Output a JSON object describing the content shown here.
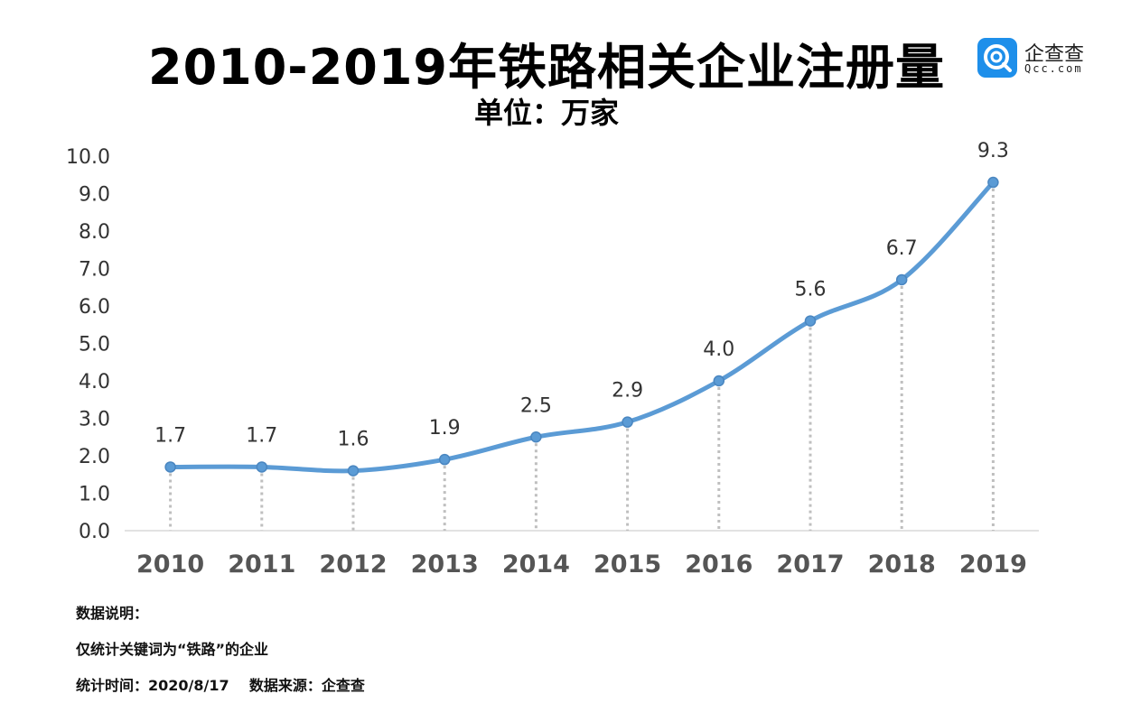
{
  "header": {
    "title": "2010-2019年铁路相关企业注册量",
    "subtitle": "单位：万家"
  },
  "logo": {
    "name": "企查查",
    "domain": "Qcc.com",
    "brand_color": "#1e8fea"
  },
  "chart_data": {
    "type": "line",
    "title": "2010-2019年铁路相关企业注册量",
    "subtitle": "单位：万家",
    "categories": [
      "2010",
      "2011",
      "2012",
      "2013",
      "2014",
      "2015",
      "2016",
      "2017",
      "2018",
      "2019"
    ],
    "series": [
      {
        "name": "铁路相关企业注册量",
        "values": [
          1.7,
          1.7,
          1.6,
          1.9,
          2.5,
          2.9,
          4.0,
          5.6,
          6.7,
          9.3
        ],
        "labels": [
          "1.7",
          "1.7",
          "1.6",
          "1.9",
          "2.5",
          "2.9",
          "4.0",
          "5.6",
          "6.7",
          "9.3"
        ],
        "color": "#5b9bd5"
      }
    ],
    "yticks": [
      "0.0",
      "1.0",
      "2.0",
      "3.0",
      "4.0",
      "5.0",
      "6.0",
      "7.0",
      "8.0",
      "9.0",
      "10.0"
    ],
    "ylim": [
      0,
      10
    ],
    "xlabel": "",
    "ylabel": "",
    "smooth": true,
    "drop_lines": true
  },
  "notes": {
    "heading": "数据说明：",
    "scope": "仅统计关键词为“铁路”的企业",
    "footer": "统计时间：2020/8/17    数据来源：企查查"
  }
}
